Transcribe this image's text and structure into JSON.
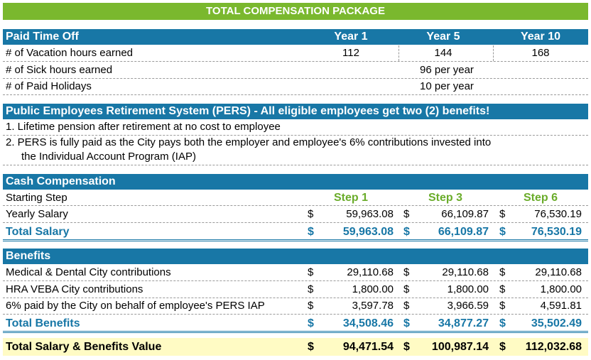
{
  "title": "TOTAL COMPENSATION PACKAGE",
  "pto": {
    "header": "Paid Time Off",
    "cols": [
      "Year 1",
      "Year 5",
      "Year 10"
    ],
    "vacation": {
      "label": "# of Vacation hours earned",
      "values": [
        "112",
        "144",
        "168"
      ]
    },
    "sick": {
      "label": "# of Sick hours earned",
      "value": "96 per year"
    },
    "holidays": {
      "label": "# of Paid Holidays",
      "value": "10 per year"
    }
  },
  "pers": {
    "header": "Public Employees Retirement System (PERS) - All eligible employees get two (2) benefits!",
    "line1": "1. Lifetime pension after retirement at no cost to employee",
    "line2a": "2.  PERS is fully paid as the City pays both the employer and employee's 6% contributions invested into",
    "line2b": "the Individual Account Program (IAP)"
  },
  "cash": {
    "header": "Cash Compensation",
    "step_label": "Starting Step",
    "steps": [
      "Step 1",
      "Step 3",
      "Step 6"
    ],
    "yearly": {
      "label": "Yearly Salary",
      "values": [
        "59,963.08",
        "66,109.87",
        "76,530.19"
      ]
    },
    "total": {
      "label": "Total Salary",
      "values": [
        "59,963.08",
        "66,109.87",
        "76,530.19"
      ]
    }
  },
  "benefits": {
    "header": "Benefits",
    "rows": [
      {
        "label": "Medical & Dental City contributions",
        "values": [
          "29,110.68",
          "29,110.68",
          "29,110.68"
        ]
      },
      {
        "label": "HRA VEBA City contributions",
        "values": [
          "1,800.00",
          "1,800.00",
          "1,800.00"
        ]
      },
      {
        "label": "6% paid by the City on behalf of employee's PERS IAP",
        "values": [
          "3,597.78",
          "3,966.59",
          "4,591.81"
        ]
      }
    ],
    "total": {
      "label": "Total Benefits",
      "values": [
        "34,508.46",
        "34,877.27",
        "35,502.49"
      ]
    }
  },
  "grand": {
    "label": "Total Salary & Benefits Value",
    "values": [
      "94,471.54",
      "100,987.14",
      "112,032.68"
    ]
  },
  "currency": "$",
  "colors": {
    "green": "#7ab82e",
    "blue": "#1877a6",
    "highlight": "#fffbc4"
  }
}
